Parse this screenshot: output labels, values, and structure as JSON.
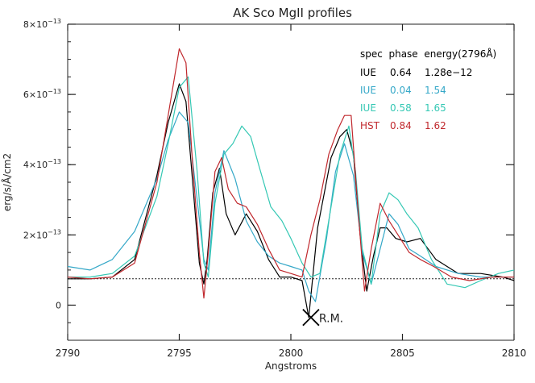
{
  "chart_data": {
    "type": "line",
    "title": "AK Sco MgII profiles",
    "xlabel": "Angstroms",
    "ylabel": "erg/s/Å/cm2",
    "xlim": [
      2790,
      2810
    ],
    "ylim": [
      -1e-13,
      8e-13
    ],
    "x_ticks": [
      2790,
      2795,
      2800,
      2805,
      2810
    ],
    "x_tick_labels": [
      "2790",
      "2795",
      "2800",
      "2805",
      "2810"
    ],
    "y_ticks": [
      0,
      2e-13,
      4e-13,
      6e-13,
      8e-13
    ],
    "y_tick_labels": [
      {
        "base": "0",
        "exp": ""
      },
      {
        "base": "2×10",
        "exp": "−13"
      },
      {
        "base": "4×10",
        "exp": "−13"
      },
      {
        "base": "6×10",
        "exp": "−13"
      },
      {
        "base": "8×10",
        "exp": "−13"
      }
    ],
    "reference_line": {
      "y": 7.5e-14,
      "style": "dotted"
    },
    "legend_header": "spec  phase  energy(2796Å)",
    "legend_rows": [
      {
        "spec": "IUE",
        "phase": "0.64",
        "energy": "1.28e−12",
        "color": "#000000"
      },
      {
        "spec": "IUE",
        "phase": "0.04",
        "energy": "1.54",
        "color": "#35a8c8"
      },
      {
        "spec": "IUE",
        "phase": "0.58",
        "energy": "1.65",
        "color": "#35c8b4"
      },
      {
        "spec": "HST",
        "phase": "0.84",
        "energy": "1.62",
        "color": "#c0282d"
      }
    ],
    "annotation": {
      "text": "R.M.",
      "x": 2800.9,
      "y": -3.5e-14
    },
    "series": [
      {
        "name": "IUE 0.64",
        "color": "#000000",
        "x": [
          2790,
          2791,
          2792,
          2793,
          2794,
          2794.5,
          2795,
          2795.3,
          2795.6,
          2795.9,
          2796.1,
          2796.25,
          2796.5,
          2796.8,
          2797.1,
          2797.5,
          2798,
          2798.5,
          2799,
          2799.5,
          2800,
          2800.5,
          2800.8,
          2801.2,
          2801.8,
          2802.2,
          2802.5,
          2802.8,
          2803.1,
          2803.4,
          2803.7,
          2804,
          2804.3,
          2804.7,
          2805.2,
          2805.8,
          2806.5,
          2807.5,
          2808.5,
          2809.5,
          2810
        ],
        "y": [
          7.5e-14,
          7.5e-14,
          8e-14,
          1.3e-13,
          3.7e-13,
          5.2e-13,
          6.3e-13,
          5.8e-13,
          3.5e-13,
          1.2e-13,
          6e-14,
          1.3e-13,
          3.2e-13,
          3.9e-13,
          2.6e-13,
          2e-13,
          2.6e-13,
          2.1e-13,
          1.3e-13,
          8e-14,
          8e-14,
          7e-14,
          -3.5e-14,
          2.2e-13,
          4.2e-13,
          4.8e-13,
          5e-13,
          4.3e-13,
          2e-13,
          4e-14,
          1.4e-13,
          2.2e-13,
          2.2e-13,
          1.9e-13,
          1.8e-13,
          1.9e-13,
          1.3e-13,
          9e-14,
          9e-14,
          8e-14,
          7e-14
        ]
      },
      {
        "name": "IUE 0.04",
        "color": "#35a8c8",
        "x": [
          2790,
          2791,
          2792,
          2793,
          2794,
          2794.5,
          2795,
          2795.4,
          2795.8,
          2796.1,
          2796.3,
          2796.6,
          2797,
          2797.5,
          2798,
          2798.5,
          2799,
          2799.5,
          2800,
          2800.5,
          2800.8,
          2801.1,
          2801.6,
          2802,
          2802.4,
          2802.8,
          2803.2,
          2803.6,
          2804,
          2804.4,
          2804.8,
          2805.3,
          2805.8,
          2806.5,
          2807.5,
          2808.5,
          2809.5,
          2810
        ],
        "y": [
          1.1e-13,
          1e-13,
          1.3e-13,
          2.1e-13,
          3.6e-13,
          4.7e-13,
          5.5e-13,
          5.2e-13,
          3e-13,
          1.3e-13,
          1e-13,
          3.2e-13,
          4.4e-13,
          3.6e-13,
          2.4e-13,
          1.8e-13,
          1.4e-13,
          1.2e-13,
          1.1e-13,
          1e-13,
          4e-14,
          1e-14,
          1.9e-13,
          3.8e-13,
          4.6e-13,
          3.7e-13,
          1.5e-13,
          6e-14,
          1.6e-13,
          2.6e-13,
          2.3e-13,
          1.6e-13,
          1.4e-13,
          1.1e-13,
          9e-14,
          8e-14,
          8e-14,
          8e-14
        ]
      },
      {
        "name": "IUE 0.58",
        "color": "#35c8b4",
        "x": [
          2790,
          2791,
          2792,
          2793,
          2794,
          2794.5,
          2795,
          2795.4,
          2795.8,
          2796.1,
          2796.3,
          2796.6,
          2797,
          2797.4,
          2797.8,
          2798.2,
          2798.6,
          2799.1,
          2799.6,
          2800,
          2800.5,
          2800.9,
          2801.3,
          2801.8,
          2802.2,
          2802.6,
          2802.9,
          2803.2,
          2803.6,
          2804,
          2804.4,
          2804.8,
          2805.2,
          2805.7,
          2806.3,
          2807,
          2807.8,
          2808.5,
          2809.3,
          2810
        ],
        "y": [
          8e-14,
          8e-14,
          9e-14,
          1.4e-13,
          3.1e-13,
          4.6e-13,
          6.2e-13,
          6.5e-13,
          3.8e-13,
          1.2e-13,
          8e-14,
          2.9e-13,
          4.3e-13,
          4.6e-13,
          5.1e-13,
          4.8e-13,
          3.9e-13,
          2.8e-13,
          2.4e-13,
          1.9e-13,
          1.2e-13,
          8e-14,
          9e-14,
          2.8e-13,
          4.3e-13,
          5.1e-13,
          3.8e-13,
          1.6e-13,
          6e-14,
          2.6e-13,
          3.2e-13,
          3e-13,
          2.6e-13,
          2.2e-13,
          1.3e-13,
          6e-14,
          5e-14,
          7e-14,
          9e-14,
          1e-13
        ]
      },
      {
        "name": "HST 0.84",
        "color": "#c0282d",
        "x": [
          2790,
          2791,
          2792,
          2793,
          2794,
          2794.5,
          2795,
          2795.3,
          2795.6,
          2795.9,
          2796.1,
          2796.3,
          2796.6,
          2796.9,
          2797.2,
          2797.6,
          2798,
          2798.5,
          2799,
          2799.5,
          2800,
          2800.5,
          2800.9,
          2801.3,
          2801.7,
          2802.1,
          2802.4,
          2802.7,
          2803,
          2803.3,
          2803.6,
          2804,
          2804.4,
          2804.8,
          2805.3,
          2805.8,
          2806.4,
          2807.2,
          2808,
          2809,
          2810
        ],
        "y": [
          8e-14,
          7.5e-14,
          8e-14,
          1.2e-13,
          3.5e-13,
          5.4e-13,
          7.3e-13,
          6.9e-13,
          4e-13,
          1.5e-13,
          2e-14,
          1.5e-13,
          3.8e-13,
          4.2e-13,
          3.3e-13,
          2.9e-13,
          2.8e-13,
          2.3e-13,
          1.6e-13,
          1e-13,
          9e-14,
          8e-14,
          2e-13,
          3e-13,
          4.3e-13,
          5e-13,
          5.4e-13,
          5.4e-13,
          2.8e-13,
          4e-14,
          1.6e-13,
          2.9e-13,
          2.4e-13,
          2e-13,
          1.5e-13,
          1.3e-13,
          1.1e-13,
          8e-14,
          7e-14,
          8e-14,
          8e-14
        ]
      }
    ]
  }
}
